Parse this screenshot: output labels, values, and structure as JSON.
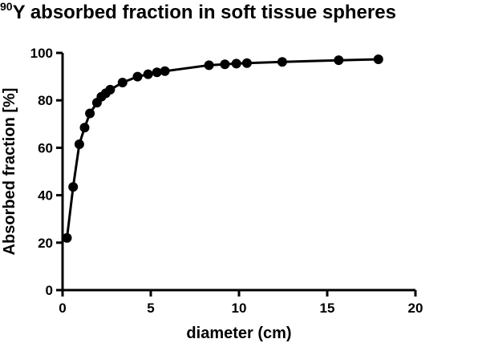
{
  "chart_data": {
    "type": "line",
    "title_superscript": "90",
    "title_text": "Y absorbed fraction in soft tissue spheres",
    "xlabel": "diameter (cm)",
    "ylabel": "Absorbed fraction [%]",
    "xlim": [
      0,
      20
    ],
    "ylim": [
      0,
      100
    ],
    "xticks": [
      0,
      5,
      10,
      15,
      20
    ],
    "yticks": [
      0,
      20,
      40,
      60,
      80,
      100
    ],
    "grid": false,
    "marker": "filled-circle",
    "color": "#000000",
    "series": [
      {
        "x": [
          0.25,
          0.6,
          0.95,
          1.25,
          1.55,
          1.95,
          2.2,
          2.45,
          2.7,
          3.4,
          4.25,
          4.85,
          5.35,
          5.8,
          8.3,
          9.2,
          9.85,
          10.45,
          12.45,
          15.65,
          17.9
        ],
        "y": [
          22,
          43.5,
          61.5,
          68.5,
          74.5,
          79,
          81.5,
          83,
          84.5,
          87.5,
          90,
          91,
          91.8,
          92.3,
          94.8,
          95.2,
          95.5,
          95.7,
          96.2,
          96.9,
          97.3
        ]
      }
    ]
  }
}
